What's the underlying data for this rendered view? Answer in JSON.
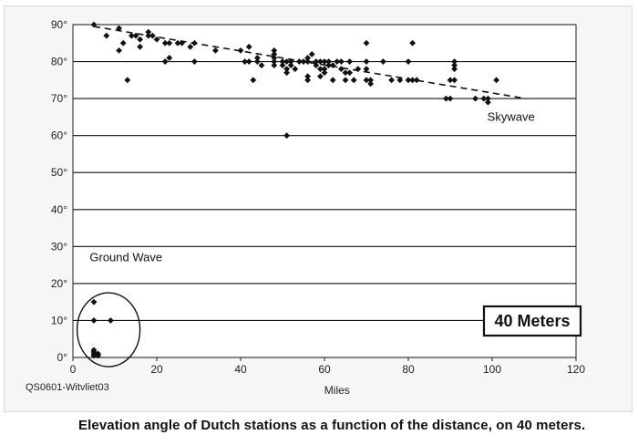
{
  "chart_data": {
    "type": "scatter",
    "title": "",
    "xlabel": "Miles",
    "ylabel": "",
    "xlim": [
      0,
      120
    ],
    "ylim": [
      0,
      90
    ],
    "x_ticks": [
      "0",
      "20",
      "40",
      "60",
      "80",
      "100",
      "120"
    ],
    "y_ticks": [
      "0°",
      "10°",
      "20°",
      "30°",
      "40°",
      "50°",
      "60°",
      "70°",
      "80°",
      "90°"
    ],
    "grid": "horizontal",
    "annotations": {
      "skywave": "Skywave",
      "ground_wave": "Ground Wave",
      "band_box": "40 Meters"
    },
    "trendline": {
      "x": [
        5,
        108
      ],
      "y": [
        89.5,
        70
      ]
    },
    "ground_wave_ellipse": {
      "cx": 8.5,
      "cy": 7.5,
      "rx": 7.5,
      "ry": 10
    },
    "series": [
      {
        "points": [
          [
            5,
            90
          ],
          [
            8,
            87
          ],
          [
            11,
            89
          ],
          [
            11,
            83
          ],
          [
            12,
            85
          ],
          [
            13,
            75
          ],
          [
            14,
            87
          ],
          [
            15,
            87
          ],
          [
            16,
            86
          ],
          [
            16,
            84
          ],
          [
            18,
            88
          ],
          [
            18,
            87
          ],
          [
            19,
            87
          ],
          [
            20,
            86
          ],
          [
            22,
            85
          ],
          [
            22,
            80
          ],
          [
            23,
            85
          ],
          [
            23,
            81
          ],
          [
            25,
            85
          ],
          [
            26,
            85
          ],
          [
            28,
            84
          ],
          [
            29,
            85
          ],
          [
            29,
            80
          ],
          [
            34,
            83
          ],
          [
            40,
            83
          ],
          [
            41,
            80
          ],
          [
            42,
            84
          ],
          [
            42,
            80
          ],
          [
            43,
            75
          ],
          [
            44,
            81
          ],
          [
            44,
            80
          ],
          [
            45,
            79
          ],
          [
            48,
            83
          ],
          [
            48,
            82
          ],
          [
            48,
            81
          ],
          [
            48,
            80
          ],
          [
            48,
            79
          ],
          [
            50,
            80
          ],
          [
            50,
            79
          ],
          [
            51,
            80
          ],
          [
            51,
            78
          ],
          [
            51,
            77
          ],
          [
            51,
            60
          ],
          [
            52,
            80
          ],
          [
            52,
            79
          ],
          [
            53,
            78
          ],
          [
            54,
            80
          ],
          [
            55,
            80
          ],
          [
            56,
            81
          ],
          [
            56,
            80
          ],
          [
            56,
            76
          ],
          [
            56,
            75
          ],
          [
            57,
            82
          ],
          [
            58,
            80
          ],
          [
            58,
            79
          ],
          [
            59,
            80
          ],
          [
            59,
            78
          ],
          [
            59,
            76
          ],
          [
            60,
            80
          ],
          [
            60,
            78
          ],
          [
            60,
            77
          ],
          [
            61,
            80
          ],
          [
            61,
            79
          ],
          [
            62,
            79
          ],
          [
            62,
            75
          ],
          [
            63,
            80
          ],
          [
            64,
            80
          ],
          [
            64,
            78
          ],
          [
            65,
            77
          ],
          [
            65,
            75
          ],
          [
            66,
            80
          ],
          [
            66,
            77
          ],
          [
            67,
            75
          ],
          [
            68,
            78
          ],
          [
            70,
            85
          ],
          [
            70,
            80
          ],
          [
            70,
            78
          ],
          [
            70,
            75
          ],
          [
            71,
            75
          ],
          [
            71,
            74
          ],
          [
            74,
            80
          ],
          [
            76,
            75
          ],
          [
            78,
            75
          ],
          [
            80,
            80
          ],
          [
            80,
            75
          ],
          [
            81,
            85
          ],
          [
            81,
            75
          ],
          [
            82,
            75
          ],
          [
            89,
            70
          ],
          [
            90,
            75
          ],
          [
            90,
            70
          ],
          [
            91,
            80
          ],
          [
            91,
            79
          ],
          [
            91,
            78
          ],
          [
            91,
            75
          ],
          [
            96,
            70
          ],
          [
            98,
            70
          ],
          [
            99,
            69
          ],
          [
            99,
            70
          ],
          [
            101,
            75
          ],
          [
            5,
            15
          ],
          [
            5,
            10
          ],
          [
            5,
            2
          ],
          [
            5,
            1.5
          ],
          [
            5,
            1
          ],
          [
            6,
            1
          ],
          [
            9,
            10
          ],
          [
            6,
            0.5
          ],
          [
            5,
            0.5
          ]
        ]
      }
    ]
  },
  "caption": "Elevation angle of Dutch stations as a function of the distance, on 40 meters.",
  "credit": "QS0601-Witvliet03",
  "colors": {
    "marker": "#111111",
    "grid": "#111111",
    "plot_bg": "#ffffff",
    "frame_bg": "#f6f6f6"
  }
}
